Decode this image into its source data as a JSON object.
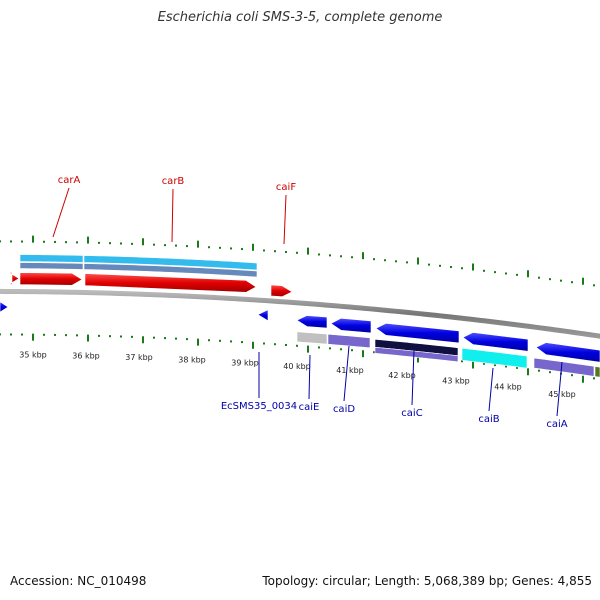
{
  "title": "Escherichia coli SMS-3-5, complete genome",
  "footer": {
    "accession": "Accession: NC_010498",
    "summary": "Topology: circular; Length: 5,068,389 bp; Genes: 4,855"
  },
  "colors": {
    "forward_gene": "#e00000",
    "reverse_gene": "#0000e0",
    "forward_label": "#cc0000",
    "reverse_label": "#0000aa",
    "tick": "#1a7a1a",
    "backbone": "#888888"
  },
  "scale_labels": [
    "35 kbp",
    "36 kbp",
    "37 kbp",
    "38 kbp",
    "39 kbp",
    "40 kbp",
    "41 kbp",
    "42 kbp",
    "43 kbp",
    "44 kbp",
    "45 kbp"
  ],
  "forward_genes": [
    "carA",
    "carB",
    "caiF"
  ],
  "reverse_genes": [
    "EcSMS35_0034",
    "caiE",
    "caiD",
    "caiC",
    "caiB",
    "caiA"
  ]
}
